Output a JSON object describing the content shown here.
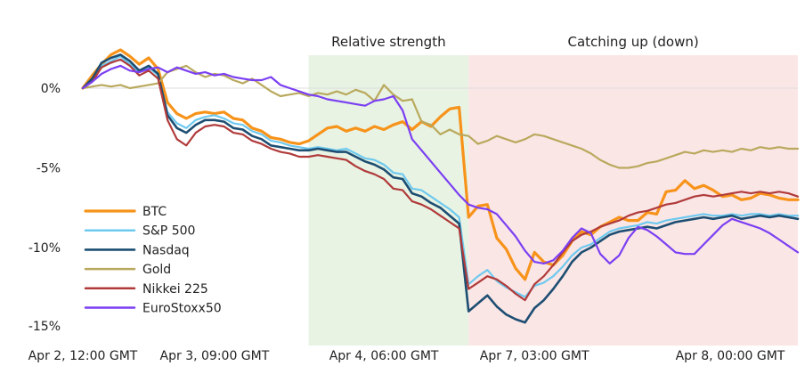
{
  "chart_data": {
    "type": "line",
    "title": "",
    "xlabel": "",
    "ylabel": "",
    "ylim": [
      -16,
      3
    ],
    "x_range": [
      0,
      76
    ],
    "x_ticks": [
      {
        "x": 0,
        "label": "Apr 2, 12:00 GMT"
      },
      {
        "x": 14,
        "label": "Apr 3, 09:00 GMT"
      },
      {
        "x": 32,
        "label": "Apr 4, 06:00 GMT"
      },
      {
        "x": 48,
        "label": "Apr 7, 03:00 GMT"
      },
      {
        "x": 64,
        "label": "Apr 8, 00:00 GMT"
      }
    ],
    "y_ticks": [
      {
        "y": 0,
        "label": "0%"
      },
      {
        "y": -5,
        "label": "-5%"
      },
      {
        "y": -10,
        "label": "-10%"
      },
      {
        "y": -15,
        "label": "-15%"
      }
    ],
    "regions": [
      {
        "label": "Relative strength",
        "x0": 24,
        "x1": 41,
        "color": "#e8f3e3"
      },
      {
        "label": "Catching up (down)",
        "x0": 41,
        "x1": 76,
        "color": "#fbe6e6"
      }
    ],
    "series": [
      {
        "name": "BTC",
        "color": "#f7931a",
        "width": 3.2,
        "values": [
          0,
          0.8,
          1.5,
          2.1,
          2.4,
          2.0,
          1.5,
          1.9,
          1.2,
          -0.9,
          -1.6,
          -1.9,
          -1.6,
          -1.5,
          -1.6,
          -1.5,
          -1.9,
          -2.0,
          -2.5,
          -2.7,
          -3.1,
          -3.2,
          -3.4,
          -3.5,
          -3.3,
          -2.9,
          -2.5,
          -2.4,
          -2.7,
          -2.5,
          -2.7,
          -2.4,
          -2.6,
          -2.3,
          -2.1,
          -2.6,
          -2.1,
          -2.4,
          -1.8,
          -1.3,
          -1.2,
          -8.1,
          -7.4,
          -7.3,
          -9.4,
          -10.1,
          -11.3,
          -12.0,
          -10.3,
          -10.9,
          -11.1,
          -10.5,
          -9.6,
          -9.0,
          -9.2,
          -8.7,
          -8.4,
          -8.1,
          -8.3,
          -8.3,
          -7.8,
          -7.9,
          -6.5,
          -6.4,
          -5.8,
          -6.3,
          -6.1,
          -6.4,
          -6.8,
          -6.7,
          -7.0,
          -6.9,
          -6.6,
          -6.7,
          -6.9,
          -7.0,
          -7.0
        ]
      },
      {
        "name": "S&P 500",
        "color": "#6ec9ef",
        "width": 2.2,
        "values": [
          0,
          0.5,
          1.4,
          1.7,
          2.0,
          1.5,
          1.0,
          1.3,
          0.8,
          -1.5,
          -2.2,
          -2.5,
          -2.0,
          -1.8,
          -1.7,
          -1.9,
          -2.2,
          -2.3,
          -2.7,
          -2.9,
          -3.3,
          -3.4,
          -3.6,
          -3.7,
          -3.8,
          -3.7,
          -3.8,
          -3.9,
          -3.8,
          -4.1,
          -4.4,
          -4.5,
          -4.8,
          -5.3,
          -5.4,
          -6.3,
          -6.4,
          -6.8,
          -7.2,
          -7.6,
          -8.1,
          -12.3,
          -11.8,
          -11.4,
          -12.1,
          -12.5,
          -12.8,
          -13.1,
          -12.4,
          -12.2,
          -11.8,
          -11.2,
          -10.5,
          -10.0,
          -9.8,
          -9.4,
          -9.0,
          -8.8,
          -8.7,
          -8.6,
          -8.4,
          -8.5,
          -8.3,
          -8.2,
          -8.1,
          -8.0,
          -7.9,
          -8.0,
          -8.0,
          -7.9,
          -8.0,
          -7.9,
          -7.9,
          -8.0,
          -7.9,
          -8.0,
          -8.0
        ]
      },
      {
        "name": "Nasdaq",
        "color": "#1d4e72",
        "width": 2.6,
        "values": [
          0,
          0.6,
          1.6,
          1.9,
          2.1,
          1.7,
          1.1,
          1.4,
          0.9,
          -1.7,
          -2.5,
          -2.8,
          -2.3,
          -2.0,
          -2.0,
          -2.1,
          -2.5,
          -2.6,
          -3.0,
          -3.2,
          -3.6,
          -3.7,
          -3.8,
          -3.9,
          -3.9,
          -3.8,
          -3.9,
          -4.0,
          -4.0,
          -4.3,
          -4.6,
          -4.8,
          -5.1,
          -5.6,
          -5.7,
          -6.6,
          -6.8,
          -7.2,
          -7.5,
          -8.0,
          -8.5,
          -14.0,
          -13.5,
          -13.0,
          -13.7,
          -14.2,
          -14.5,
          -14.7,
          -13.8,
          -13.3,
          -12.6,
          -11.8,
          -10.9,
          -10.3,
          -10.0,
          -9.6,
          -9.2,
          -9.0,
          -8.9,
          -8.8,
          -8.7,
          -8.8,
          -8.6,
          -8.4,
          -8.3,
          -8.2,
          -8.1,
          -8.2,
          -8.1,
          -8.0,
          -8.2,
          -8.1,
          -8.0,
          -8.1,
          -8.0,
          -8.1,
          -8.2
        ]
      },
      {
        "name": "Gold",
        "color": "#b9a95d",
        "width": 2.2,
        "values": [
          0,
          0.1,
          0.2,
          0.1,
          0.2,
          0.0,
          0.1,
          0.2,
          0.3,
          1.0,
          1.2,
          1.4,
          1.0,
          0.7,
          0.9,
          0.8,
          0.5,
          0.3,
          0.6,
          0.2,
          -0.2,
          -0.5,
          -0.4,
          -0.3,
          -0.5,
          -0.3,
          -0.4,
          -0.2,
          -0.4,
          -0.1,
          -0.3,
          -0.8,
          0.2,
          -0.4,
          -0.8,
          -0.7,
          -2.1,
          -2.3,
          -2.9,
          -2.6,
          -2.9,
          -3.0,
          -3.5,
          -3.3,
          -3.0,
          -3.2,
          -3.4,
          -3.2,
          -2.9,
          -3.0,
          -3.2,
          -3.4,
          -3.6,
          -3.8,
          -4.1,
          -4.5,
          -4.8,
          -5.0,
          -5.0,
          -4.9,
          -4.7,
          -4.6,
          -4.4,
          -4.2,
          -4.0,
          -4.1,
          -3.9,
          -4.0,
          -3.9,
          -4.0,
          -3.8,
          -3.9,
          -3.7,
          -3.8,
          -3.7,
          -3.8,
          -3.8
        ]
      },
      {
        "name": "Nikkei 225",
        "color": "#b03a3a",
        "width": 2.2,
        "values": [
          0,
          0.4,
          1.3,
          1.6,
          1.8,
          1.4,
          0.8,
          1.1,
          0.6,
          -2.0,
          -3.2,
          -3.6,
          -2.8,
          -2.4,
          -2.3,
          -2.4,
          -2.8,
          -2.9,
          -3.3,
          -3.5,
          -3.8,
          -4.0,
          -4.1,
          -4.3,
          -4.3,
          -4.2,
          -4.3,
          -4.4,
          -4.5,
          -4.9,
          -5.2,
          -5.4,
          -5.7,
          -6.3,
          -6.4,
          -7.1,
          -7.3,
          -7.6,
          -8.0,
          -8.4,
          -8.8,
          -12.6,
          -12.2,
          -11.8,
          -12.0,
          -12.4,
          -12.9,
          -13.3,
          -12.3,
          -11.8,
          -11.1,
          -10.3,
          -9.6,
          -9.2,
          -9.0,
          -8.7,
          -8.5,
          -8.3,
          -8.0,
          -7.8,
          -7.7,
          -7.5,
          -7.3,
          -7.2,
          -7.0,
          -6.8,
          -6.7,
          -6.8,
          -6.7,
          -6.6,
          -6.5,
          -6.6,
          -6.5,
          -6.6,
          -6.5,
          -6.6,
          -6.8
        ]
      },
      {
        "name": "EuroStoxx50",
        "color": "#7b3ff2",
        "width": 2.2,
        "values": [
          0,
          0.4,
          0.9,
          1.2,
          1.4,
          1.1,
          1.0,
          1.2,
          1.3,
          1.0,
          1.3,
          1.1,
          0.9,
          1.0,
          0.8,
          0.9,
          0.7,
          0.6,
          0.5,
          0.5,
          0.7,
          0.2,
          0.0,
          -0.2,
          -0.4,
          -0.5,
          -0.7,
          -0.8,
          -0.9,
          -1.0,
          -1.1,
          -0.8,
          -0.7,
          -0.5,
          -1.4,
          -3.2,
          -3.9,
          -4.6,
          -5.3,
          -6.0,
          -6.7,
          -7.3,
          -7.5,
          -7.6,
          -7.9,
          -8.6,
          -9.3,
          -10.2,
          -10.9,
          -11.0,
          -10.8,
          -10.2,
          -9.4,
          -8.8,
          -9.1,
          -10.4,
          -11.0,
          -10.5,
          -9.4,
          -8.7,
          -8.9,
          -9.3,
          -9.8,
          -10.3,
          -10.4,
          -10.4,
          -9.8,
          -9.2,
          -8.6,
          -8.2,
          -8.4,
          -8.6,
          -8.8,
          -9.1,
          -9.5,
          -9.9,
          -10.3
        ]
      }
    ]
  }
}
